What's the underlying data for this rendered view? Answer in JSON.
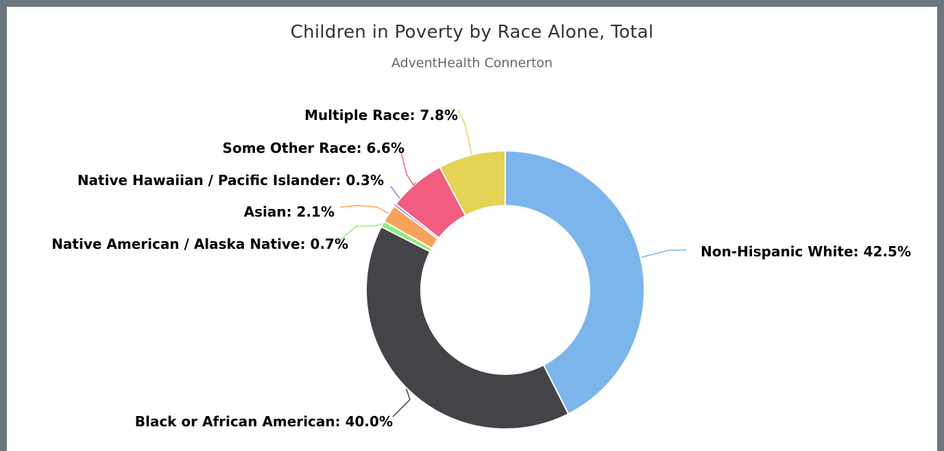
{
  "chart_data": {
    "type": "pie",
    "variant": "donut",
    "title": "Children in Poverty by Race Alone, Total",
    "subtitle": "AdventHealth Connerton",
    "slices": [
      {
        "name": "Non-Hispanic White",
        "value": 42.5,
        "label": "Non-Hispanic White: 42.5%",
        "color": "#7cb5ec"
      },
      {
        "name": "Black or African American",
        "value": 40.0,
        "label": "Black or African American: 40.0%",
        "color": "#434348"
      },
      {
        "name": "Native American / Alaska Native",
        "value": 0.7,
        "label": "Native American / Alaska Native: 0.7%",
        "color": "#90ed7d"
      },
      {
        "name": "Asian",
        "value": 2.1,
        "label": "Asian: 2.1%",
        "color": "#f7a35c"
      },
      {
        "name": "Native Hawaiian / Pacific Islander",
        "value": 0.3,
        "label": "Native Hawaiian / Pacific Islander: 0.3%",
        "color": "#8085e9"
      },
      {
        "name": "Some Other Race",
        "value": 6.6,
        "label": "Some Other Race: 6.6%",
        "color": "#f15c80"
      },
      {
        "name": "Multiple Race",
        "value": 7.8,
        "label": "Multiple Race: 7.8%",
        "color": "#e4d354"
      }
    ]
  }
}
